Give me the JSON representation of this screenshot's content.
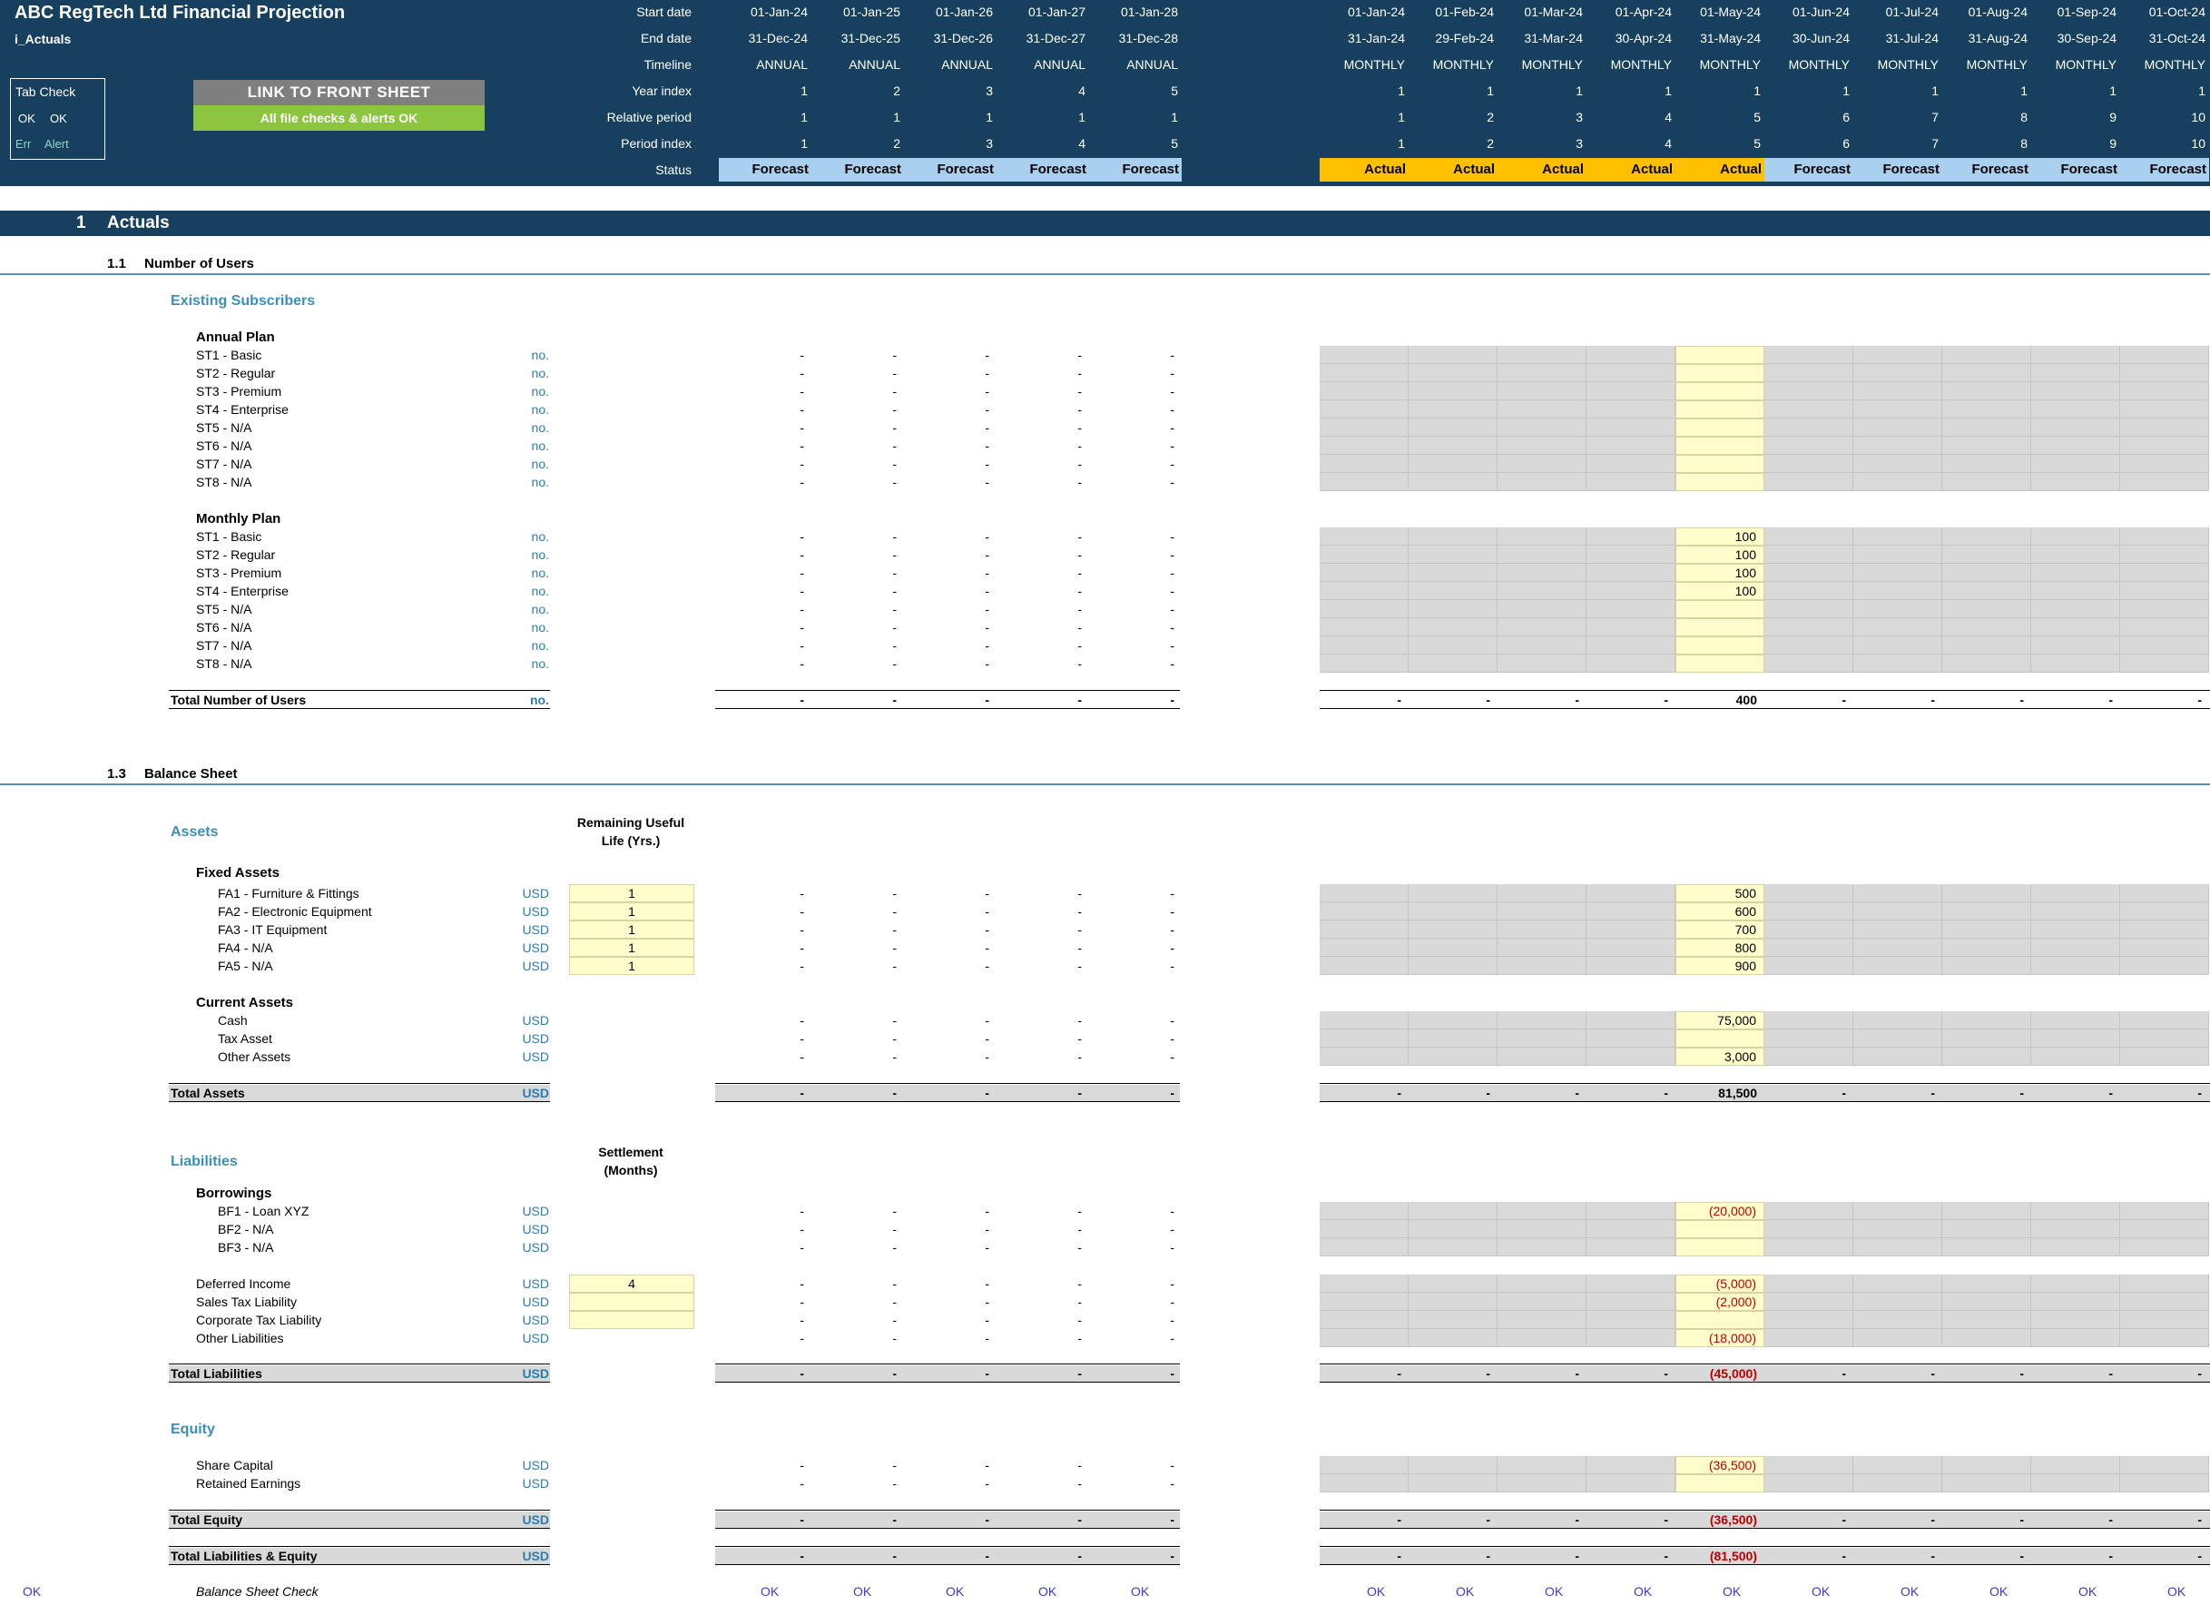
{
  "header": {
    "title": "ABC RegTech Ltd Financial Projection",
    "sheet": "i_Actuals",
    "tab_check": {
      "title": "Tab Check",
      "ok1": "OK",
      "ok2": "OK",
      "err": "Err",
      "alert": "Alert"
    },
    "link_button": "LINK TO FRONT SHEET",
    "checks_status": "All file checks & alerts OK",
    "row_labels": [
      "Start date",
      "End date",
      "Timeline",
      "Year index",
      "Relative period",
      "Period index",
      "Status"
    ],
    "annual": [
      {
        "start": "01-Jan-24",
        "end": "31-Dec-24",
        "timeline": "ANNUAL",
        "year": "1",
        "rel": "1",
        "period": "1",
        "status": "Forecast"
      },
      {
        "start": "01-Jan-25",
        "end": "31-Dec-25",
        "timeline": "ANNUAL",
        "year": "2",
        "rel": "1",
        "period": "2",
        "status": "Forecast"
      },
      {
        "start": "01-Jan-26",
        "end": "31-Dec-26",
        "timeline": "ANNUAL",
        "year": "3",
        "rel": "1",
        "period": "3",
        "status": "Forecast"
      },
      {
        "start": "01-Jan-27",
        "end": "31-Dec-27",
        "timeline": "ANNUAL",
        "year": "4",
        "rel": "1",
        "period": "4",
        "status": "Forecast"
      },
      {
        "start": "01-Jan-28",
        "end": "31-Dec-28",
        "timeline": "ANNUAL",
        "year": "5",
        "rel": "1",
        "period": "5",
        "status": "Forecast"
      }
    ],
    "monthly": [
      {
        "start": "01-Jan-24",
        "end": "31-Jan-24",
        "timeline": "MONTHLY",
        "year": "1",
        "rel": "1",
        "period": "1",
        "status": "Actual"
      },
      {
        "start": "01-Feb-24",
        "end": "29-Feb-24",
        "timeline": "MONTHLY",
        "year": "1",
        "rel": "2",
        "period": "2",
        "status": "Actual"
      },
      {
        "start": "01-Mar-24",
        "end": "31-Mar-24",
        "timeline": "MONTHLY",
        "year": "1",
        "rel": "3",
        "period": "3",
        "status": "Actual"
      },
      {
        "start": "01-Apr-24",
        "end": "30-Apr-24",
        "timeline": "MONTHLY",
        "year": "1",
        "rel": "4",
        "period": "4",
        "status": "Actual"
      },
      {
        "start": "01-May-24",
        "end": "31-May-24",
        "timeline": "MONTHLY",
        "year": "1",
        "rel": "5",
        "period": "5",
        "status": "Actual"
      },
      {
        "start": "01-Jun-24",
        "end": "30-Jun-24",
        "timeline": "MONTHLY",
        "year": "1",
        "rel": "6",
        "period": "6",
        "status": "Forecast"
      },
      {
        "start": "01-Jul-24",
        "end": "31-Jul-24",
        "timeline": "MONTHLY",
        "year": "1",
        "rel": "7",
        "period": "7",
        "status": "Forecast"
      },
      {
        "start": "01-Aug-24",
        "end": "31-Aug-24",
        "timeline": "MONTHLY",
        "year": "1",
        "rel": "8",
        "period": "8",
        "status": "Forecast"
      },
      {
        "start": "01-Sep-24",
        "end": "30-Sep-24",
        "timeline": "MONTHLY",
        "year": "1",
        "rel": "9",
        "period": "9",
        "status": "Forecast"
      },
      {
        "start": "01-Oct-24",
        "end": "31-Oct-24",
        "timeline": "MONTHLY",
        "year": "1",
        "rel": "10",
        "period": "10",
        "status": "Forecast"
      }
    ]
  },
  "section": {
    "number": "1",
    "title": "Actuals"
  },
  "users": {
    "heading_num": "1.1",
    "heading": "Number of Users",
    "group": "Existing Subscribers",
    "annual_title": "Annual Plan",
    "monthly_title": "Monthly Plan",
    "unit": "no.",
    "annual_rows": [
      "ST1 - Basic",
      "ST2 - Regular",
      "ST3 - Premium",
      "ST4 - Enterprise",
      "ST5 - N/A",
      "ST6 - N/A",
      "ST7 - N/A",
      "ST8 - N/A"
    ],
    "monthly_rows": [
      "ST1 - Basic",
      "ST2 - Regular",
      "ST3 - Premium",
      "ST4 - Enterprise",
      "ST5 - N/A",
      "ST6 - N/A",
      "ST7 - N/A",
      "ST8 - N/A"
    ],
    "monthly_may_values": [
      "100",
      "100",
      "100",
      "100",
      "",
      "",
      "",
      ""
    ],
    "total_label": "Total Number of Users",
    "total_may": "400"
  },
  "balance": {
    "heading_num": "1.3",
    "heading": "Balance Sheet",
    "assets_title": "Assets",
    "useful_life_header_1": "Remaining Useful",
    "useful_life_header_2": "Life (Yrs.)",
    "fixed_title": "Fixed Assets",
    "unit": "USD",
    "fixed_rows": [
      {
        "label": "FA1 - Furniture & Fittings",
        "life": "1",
        "may": "500"
      },
      {
        "label": "FA2 - Electronic Equipment",
        "life": "1",
        "may": "600"
      },
      {
        "label": "FA3 - IT Equipment",
        "life": "1",
        "may": "700"
      },
      {
        "label": "FA4 - N/A",
        "life": "1",
        "may": "800"
      },
      {
        "label": "FA5 - N/A",
        "life": "1",
        "may": "900"
      }
    ],
    "current_title": "Current Assets",
    "current_rows": [
      {
        "label": "Cash",
        "may": "75,000"
      },
      {
        "label": "Tax Asset",
        "may": ""
      },
      {
        "label": "Other Assets",
        "may": "3,000"
      }
    ],
    "total_assets_label": "Total Assets",
    "total_assets_may": "81,500",
    "liabilities_title": "Liabilities",
    "settlement_header_1": "Settlement",
    "settlement_header_2": "(Months)",
    "borrowings_title": "Borrowings",
    "borrow_rows": [
      {
        "label": "BF1 - Loan XYZ",
        "may": "(20,000)"
      },
      {
        "label": "BF2 - N/A",
        "may": ""
      },
      {
        "label": "BF3 - N/A",
        "may": ""
      }
    ],
    "other_liab_rows": [
      {
        "label": "Deferred Income",
        "settle": "4",
        "may": "(5,000)"
      },
      {
        "label": "Sales Tax Liability",
        "settle": "",
        "may": "(2,000)"
      },
      {
        "label": "Corporate Tax Liability",
        "settle": "",
        "may": ""
      },
      {
        "label": "Other Liabilities",
        "settle": null,
        "may": "(18,000)"
      }
    ],
    "total_liab_label": "Total Liabilities",
    "total_liab_may": "(45,000)",
    "equity_title": "Equity",
    "equity_rows": [
      {
        "label": "Share Capital",
        "may": "(36,500)"
      },
      {
        "label": "Retained Earnings",
        "may": ""
      }
    ],
    "total_equity_label": "Total Equity",
    "total_equity_may": "(36,500)",
    "total_le_label": "Total Liabilities & Equity",
    "total_le_may": "(81,500)",
    "check_label": "Balance Sheet Check",
    "check_value": "OK"
  },
  "dash": "-",
  "colors": {
    "navy": "#17405e",
    "forecast": "#a9d0ee",
    "actual": "#ffc000",
    "link_button": "#7f7f7f",
    "ok_green": "#8cc63f",
    "input_yellow": "#fffdcc",
    "grey_cell": "#d9d9d9"
  }
}
